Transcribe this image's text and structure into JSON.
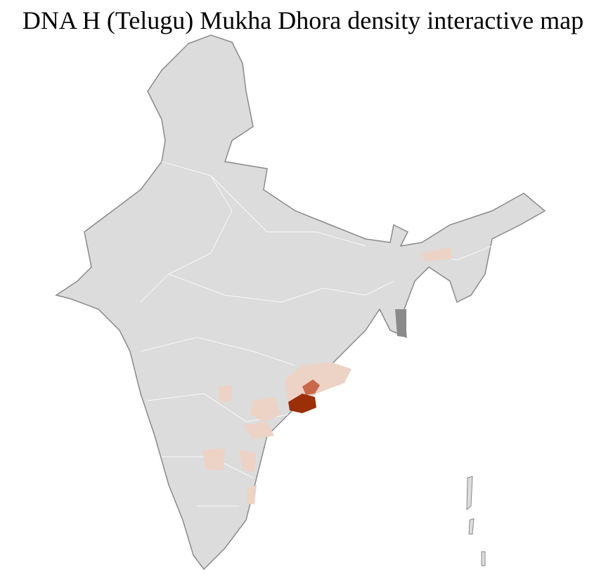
{
  "title": "DNA H (Telugu) Mukha Dhora density interactive map",
  "colors": {
    "no_data": "#dcdcdc",
    "border": "#ffffff",
    "state_border": "#8a8a8a",
    "low": "#ecd3c6",
    "medium": "#c8684a",
    "high": "#9b2f08"
  }
}
